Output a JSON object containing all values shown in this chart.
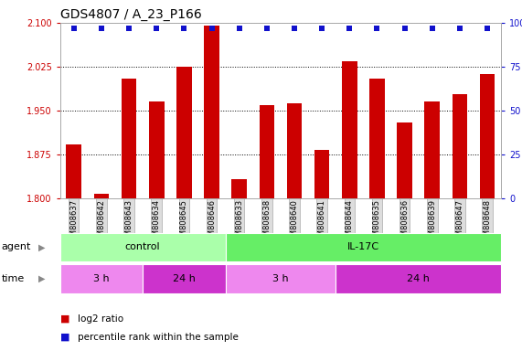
{
  "title": "GDS4807 / A_23_P166",
  "samples": [
    "GSM808637",
    "GSM808642",
    "GSM808643",
    "GSM808634",
    "GSM808645",
    "GSM808646",
    "GSM808633",
    "GSM808638",
    "GSM808640",
    "GSM808641",
    "GSM808644",
    "GSM808635",
    "GSM808636",
    "GSM808639",
    "GSM808647",
    "GSM808648"
  ],
  "log2_values": [
    1.892,
    1.808,
    2.005,
    1.965,
    2.025,
    2.095,
    1.832,
    1.96,
    1.963,
    1.882,
    2.035,
    2.005,
    1.93,
    1.965,
    1.978,
    2.013
  ],
  "percentile_values": [
    97,
    97,
    97,
    97,
    97,
    97,
    97,
    97,
    97,
    97,
    97,
    97,
    97,
    97,
    97,
    97
  ],
  "ylim_left": [
    1.8,
    2.1
  ],
  "ylim_right": [
    0,
    100
  ],
  "yticks_left": [
    1.8,
    1.875,
    1.95,
    2.025,
    2.1
  ],
  "yticks_right": [
    0,
    25,
    50,
    75,
    100
  ],
  "bar_color": "#cc0000",
  "dot_color": "#1111cc",
  "agent_control_color": "#aaffaa",
  "agent_il17c_color": "#66ee66",
  "time_3h_color": "#ee88ee",
  "time_24h_color": "#cc33cc",
  "agent_groups": [
    {
      "label": "control",
      "start": 0,
      "end": 6
    },
    {
      "label": "IL-17C",
      "start": 6,
      "end": 16
    }
  ],
  "time_groups": [
    {
      "label": "3 h",
      "start": 0,
      "end": 3,
      "color": "#ee88ee"
    },
    {
      "label": "24 h",
      "start": 3,
      "end": 6,
      "color": "#cc33cc"
    },
    {
      "label": "3 h",
      "start": 6,
      "end": 10,
      "color": "#ee88ee"
    },
    {
      "label": "24 h",
      "start": 10,
      "end": 16,
      "color": "#cc33cc"
    }
  ],
  "bg_color": "#ffffff",
  "tick_fontsize": 7,
  "title_fontsize": 10,
  "sample_fontsize": 6,
  "annot_fontsize": 8,
  "legend_fontsize": 7.5
}
